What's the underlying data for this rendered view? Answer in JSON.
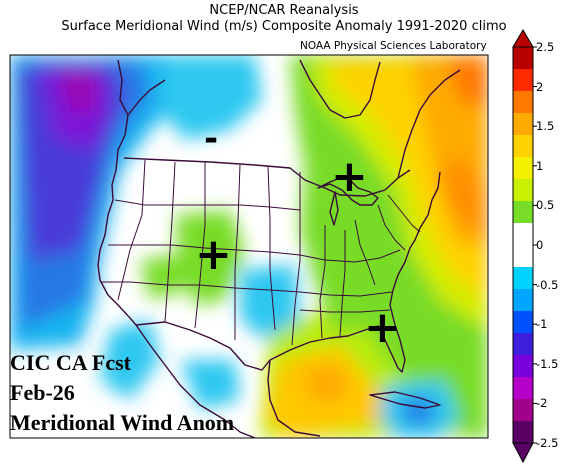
{
  "header": {
    "line1": "NCEP/NCAR Reanalysis",
    "line2": "Surface Meridional Wind (m/s) Composite Anomaly 1991-2020 climo",
    "credit": "NOAA Physical Sciences Laboratory"
  },
  "overlay": {
    "line1": "CIC CA Fcst",
    "line2": "Feb-26",
    "line3": "Meridional Wind Anom"
  },
  "annotations": {
    "minus_northwest": "-",
    "plus_great_lakes": "+",
    "plus_colorado": "+",
    "plus_florida": "+"
  },
  "colorbar": {
    "labels": [
      "2.5",
      "2",
      "1.5",
      "1",
      "0.5",
      "0",
      "-0.5",
      "-1",
      "-1.5",
      "-2",
      "-2.5"
    ],
    "colors": [
      "#b80000",
      "#ff2a00",
      "#ff7800",
      "#ffaa00",
      "#ffd200",
      "#f5f000",
      "#c8f000",
      "#78dc28",
      "#ffffff",
      "#ffffff",
      "#00d2ff",
      "#00a5ff",
      "#0050ff",
      "#3c1edc",
      "#7800dc",
      "#b400c8",
      "#a0008c",
      "#5a0064"
    ]
  }
}
